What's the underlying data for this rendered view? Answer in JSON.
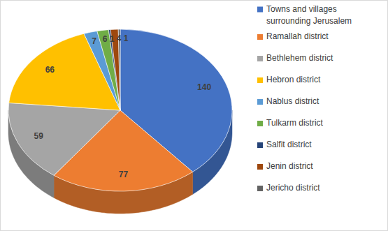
{
  "chart_data": {
    "type": "pie",
    "categories": [
      "Towns and villages surrounding Jerusalem",
      "Ramallah district",
      "Bethlehem district",
      "Hebron district",
      "Nablus district",
      "Tulkarm district",
      "Salfit district",
      "Jenin district",
      "Jericho district"
    ],
    "values": [
      140,
      77,
      59,
      66,
      7,
      6,
      1,
      4,
      1
    ],
    "colors": [
      "#4472c4",
      "#ed7d31",
      "#a5a5a5",
      "#ffc000",
      "#5b9bd5",
      "#70ad47",
      "#264478",
      "#9e480e",
      "#636363"
    ],
    "data_labels": true,
    "legend": "right"
  }
}
